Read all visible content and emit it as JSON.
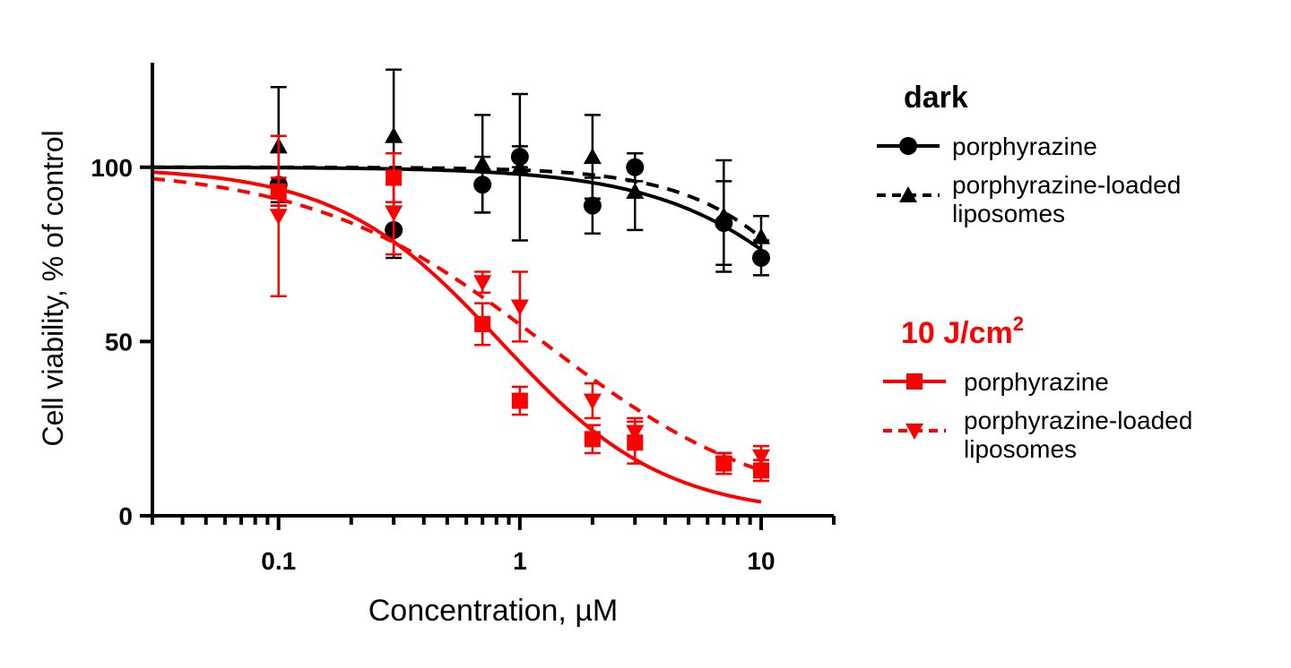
{
  "chart_data": {
    "type": "scatter",
    "xlabel": "Concentration, µM",
    "ylabel": "Cell viability, % of control",
    "xscale": "log",
    "xlim": [
      0.03,
      20
    ],
    "ylim": [
      0,
      130
    ],
    "xticks": [
      {
        "v": 0.1,
        "label": "0.1"
      },
      {
        "v": 1,
        "label": "1"
      },
      {
        "v": 10,
        "label": "10"
      }
    ],
    "yticks": [
      {
        "v": 0,
        "label": "0"
      },
      {
        "v": 50,
        "label": "50"
      },
      {
        "v": 100,
        "label": "100"
      }
    ],
    "grid": false,
    "legend_placement": "right",
    "legend_groups": [
      {
        "title": "dark",
        "title_sup": "",
        "color": "#000000"
      },
      {
        "title": "10 J/cm",
        "title_sup": "2",
        "color": "#ff0000"
      }
    ],
    "series": [
      {
        "name": "porphyrazine",
        "group": 0,
        "color": "#000000",
        "marker": "circle",
        "line": "solid",
        "x": [
          0.1,
          0.3,
          0.7,
          1,
          2,
          3,
          7,
          10
        ],
        "y": [
          95,
          82,
          95,
          103,
          89,
          100,
          84,
          74
        ],
        "err": [
          5,
          8,
          8,
          3,
          8,
          4,
          12,
          5
        ],
        "fit": {
          "top": 100,
          "bottom": 0,
          "ic50": 27,
          "hill": 1.18
        }
      },
      {
        "name": "porphyrazine-loaded liposomes",
        "group": 0,
        "color": "#000000",
        "marker": "triangle-up",
        "line": "dashed",
        "x": [
          0.1,
          0.3,
          0.7,
          1,
          2,
          3,
          7,
          10
        ],
        "y": [
          106,
          109,
          101,
          100,
          103,
          93,
          86,
          80
        ],
        "err": [
          17,
          19,
          14,
          21,
          12,
          11,
          16,
          6
        ],
        "fit": {
          "top": 100,
          "bottom": 0,
          "ic50": 25,
          "hill": 1.5
        }
      },
      {
        "name": "porphyrazine",
        "group": 1,
        "color": "#ff0000",
        "marker": "square",
        "line": "solid",
        "x": [
          0.1,
          0.3,
          0.7,
          1,
          2,
          3,
          7,
          10
        ],
        "y": [
          93,
          97,
          55,
          33,
          22,
          21,
          15,
          13
        ],
        "err": [
          4,
          7,
          6,
          4,
          4,
          6,
          3,
          3
        ],
        "fit": {
          "top": 100,
          "bottom": 0,
          "ic50": 0.83,
          "hill": 1.28
        }
      },
      {
        "name": "porphyrazine-loaded liposomes",
        "group": 1,
        "color": "#ff0000",
        "marker": "triangle-down",
        "line": "dashed",
        "x": [
          0.1,
          0.3,
          0.7,
          1,
          2,
          3,
          7,
          10
        ],
        "y": [
          86,
          87,
          67,
          60,
          33,
          24,
          15,
          17
        ],
        "err": [
          23,
          12,
          3,
          10,
          5,
          4,
          3,
          3
        ],
        "fit": {
          "top": 100,
          "bottom": 0,
          "ic50": 1.24,
          "hill": 0.91
        }
      }
    ]
  }
}
